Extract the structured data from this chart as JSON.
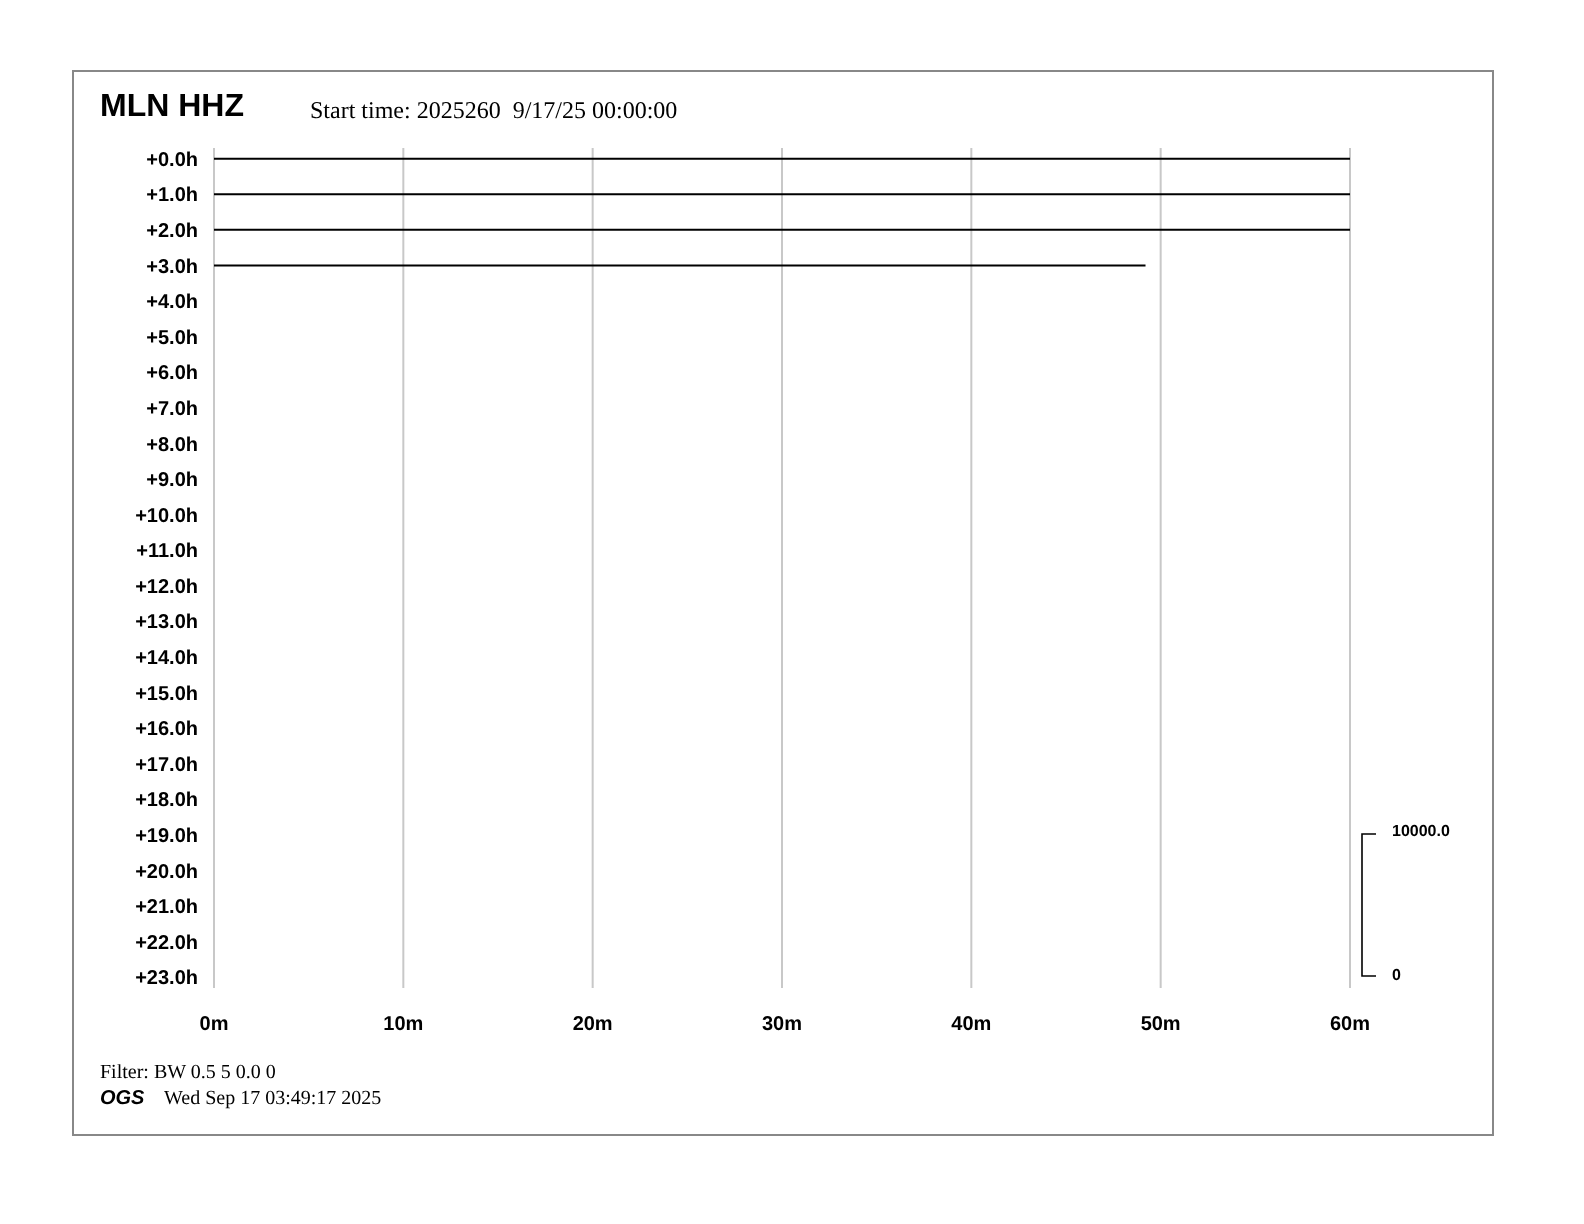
{
  "chart_data": {
    "type": "line",
    "title": "MLN HHZ",
    "subtitle": "Start time: 2025260  9/17/25 00:00:00",
    "annotations": [
      "10000.0",
      "0",
      "Filter: BW 0.5 5 0.0 0",
      "OGS",
      "Wed Sep 17 03:49:17 2025"
    ],
    "series": [
      {
        "color": "#000000",
        "x": [
          0,
          60
        ],
        "values": [
          0,
          0
        ]
      },
      {
        "color": "#000000",
        "x": [
          0,
          60
        ],
        "values": [
          1,
          1
        ]
      },
      {
        "color": "#000000",
        "x": [
          0,
          60
        ],
        "values": [
          2,
          2
        ]
      },
      {
        "color": "#000000",
        "x": [
          0,
          49.2
        ],
        "values": [
          3,
          3
        ]
      }
    ],
    "xlim": [
      0,
      60
    ],
    "xticks": [
      {
        "value": 0,
        "label": "0m"
      },
      {
        "value": 10,
        "label": "10m"
      },
      {
        "value": 20,
        "label": "20m"
      },
      {
        "value": 30,
        "label": "30m"
      },
      {
        "value": 40,
        "label": "40m"
      },
      {
        "value": 50,
        "label": "50m"
      },
      {
        "value": 60,
        "label": "60m"
      }
    ],
    "ylim": [
      23.3,
      -0.3
    ],
    "yticks": [
      {
        "value": 0,
        "label": "+0.0h"
      },
      {
        "value": 1,
        "label": "+1.0h"
      },
      {
        "value": 2,
        "label": "+2.0h"
      },
      {
        "value": 3,
        "label": "+3.0h"
      },
      {
        "value": 4,
        "label": "+4.0h"
      },
      {
        "value": 5,
        "label": "+5.0h"
      },
      {
        "value": 6,
        "label": "+6.0h"
      },
      {
        "value": 7,
        "label": "+7.0h"
      },
      {
        "value": 8,
        "label": "+8.0h"
      },
      {
        "value": 9,
        "label": "+9.0h"
      },
      {
        "value": 10,
        "label": "+10.0h"
      },
      {
        "value": 11,
        "label": "+11.0h"
      },
      {
        "value": 12,
        "label": "+12.0h"
      },
      {
        "value": 13,
        "label": "+13.0h"
      },
      {
        "value": 14,
        "label": "+14.0h"
      },
      {
        "value": 15,
        "label": "+15.0h"
      },
      {
        "value": 16,
        "label": "+16.0h"
      },
      {
        "value": 17,
        "label": "+17.0h"
      },
      {
        "value": 18,
        "label": "+18.0h"
      },
      {
        "value": 19,
        "label": "+19.0h"
      },
      {
        "value": 20,
        "label": "+20.0h"
      },
      {
        "value": 21,
        "label": "+21.0h"
      },
      {
        "value": 22,
        "label": "+22.0h"
      },
      {
        "value": 23,
        "label": "+23.0h"
      }
    ],
    "grid": "x",
    "marker": "none",
    "line_style": "solid"
  }
}
